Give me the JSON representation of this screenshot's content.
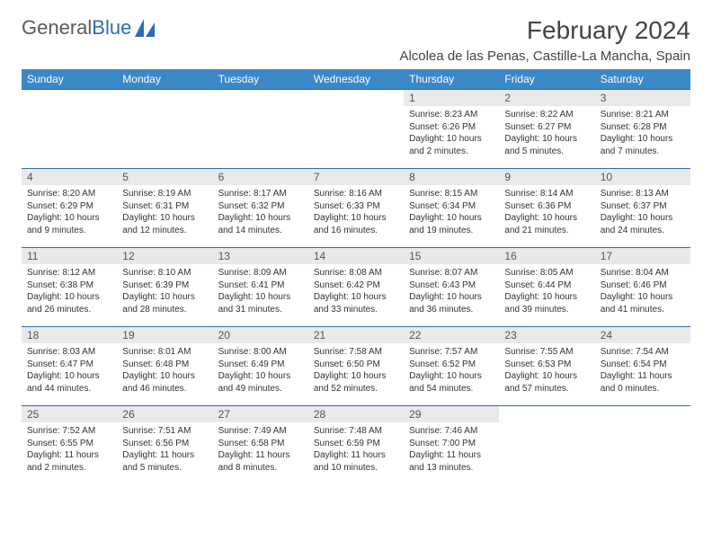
{
  "brand": {
    "part1": "General",
    "part2": "Blue"
  },
  "colors": {
    "header_bg": "#3b88c9",
    "header_text": "#ffffff",
    "border": "#2a6db5",
    "daynum_bg": "#e9e9e9",
    "text": "#333333",
    "brand_blue": "#2a6db5"
  },
  "title": "February 2024",
  "location": "Alcolea de las Penas, Castille-La Mancha, Spain",
  "weekdays": [
    "Sunday",
    "Monday",
    "Tuesday",
    "Wednesday",
    "Thursday",
    "Friday",
    "Saturday"
  ],
  "weeks": [
    [
      {
        "empty": true
      },
      {
        "empty": true
      },
      {
        "empty": true
      },
      {
        "empty": true
      },
      {
        "n": "1",
        "sr": "Sunrise: 8:23 AM",
        "ss": "Sunset: 6:26 PM",
        "dl1": "Daylight: 10 hours",
        "dl2": "and 2 minutes."
      },
      {
        "n": "2",
        "sr": "Sunrise: 8:22 AM",
        "ss": "Sunset: 6:27 PM",
        "dl1": "Daylight: 10 hours",
        "dl2": "and 5 minutes."
      },
      {
        "n": "3",
        "sr": "Sunrise: 8:21 AM",
        "ss": "Sunset: 6:28 PM",
        "dl1": "Daylight: 10 hours",
        "dl2": "and 7 minutes."
      }
    ],
    [
      {
        "n": "4",
        "sr": "Sunrise: 8:20 AM",
        "ss": "Sunset: 6:29 PM",
        "dl1": "Daylight: 10 hours",
        "dl2": "and 9 minutes."
      },
      {
        "n": "5",
        "sr": "Sunrise: 8:19 AM",
        "ss": "Sunset: 6:31 PM",
        "dl1": "Daylight: 10 hours",
        "dl2": "and 12 minutes."
      },
      {
        "n": "6",
        "sr": "Sunrise: 8:17 AM",
        "ss": "Sunset: 6:32 PM",
        "dl1": "Daylight: 10 hours",
        "dl2": "and 14 minutes."
      },
      {
        "n": "7",
        "sr": "Sunrise: 8:16 AM",
        "ss": "Sunset: 6:33 PM",
        "dl1": "Daylight: 10 hours",
        "dl2": "and 16 minutes."
      },
      {
        "n": "8",
        "sr": "Sunrise: 8:15 AM",
        "ss": "Sunset: 6:34 PM",
        "dl1": "Daylight: 10 hours",
        "dl2": "and 19 minutes."
      },
      {
        "n": "9",
        "sr": "Sunrise: 8:14 AM",
        "ss": "Sunset: 6:36 PM",
        "dl1": "Daylight: 10 hours",
        "dl2": "and 21 minutes."
      },
      {
        "n": "10",
        "sr": "Sunrise: 8:13 AM",
        "ss": "Sunset: 6:37 PM",
        "dl1": "Daylight: 10 hours",
        "dl2": "and 24 minutes."
      }
    ],
    [
      {
        "n": "11",
        "sr": "Sunrise: 8:12 AM",
        "ss": "Sunset: 6:38 PM",
        "dl1": "Daylight: 10 hours",
        "dl2": "and 26 minutes."
      },
      {
        "n": "12",
        "sr": "Sunrise: 8:10 AM",
        "ss": "Sunset: 6:39 PM",
        "dl1": "Daylight: 10 hours",
        "dl2": "and 28 minutes."
      },
      {
        "n": "13",
        "sr": "Sunrise: 8:09 AM",
        "ss": "Sunset: 6:41 PM",
        "dl1": "Daylight: 10 hours",
        "dl2": "and 31 minutes."
      },
      {
        "n": "14",
        "sr": "Sunrise: 8:08 AM",
        "ss": "Sunset: 6:42 PM",
        "dl1": "Daylight: 10 hours",
        "dl2": "and 33 minutes."
      },
      {
        "n": "15",
        "sr": "Sunrise: 8:07 AM",
        "ss": "Sunset: 6:43 PM",
        "dl1": "Daylight: 10 hours",
        "dl2": "and 36 minutes."
      },
      {
        "n": "16",
        "sr": "Sunrise: 8:05 AM",
        "ss": "Sunset: 6:44 PM",
        "dl1": "Daylight: 10 hours",
        "dl2": "and 39 minutes."
      },
      {
        "n": "17",
        "sr": "Sunrise: 8:04 AM",
        "ss": "Sunset: 6:46 PM",
        "dl1": "Daylight: 10 hours",
        "dl2": "and 41 minutes."
      }
    ],
    [
      {
        "n": "18",
        "sr": "Sunrise: 8:03 AM",
        "ss": "Sunset: 6:47 PM",
        "dl1": "Daylight: 10 hours",
        "dl2": "and 44 minutes."
      },
      {
        "n": "19",
        "sr": "Sunrise: 8:01 AM",
        "ss": "Sunset: 6:48 PM",
        "dl1": "Daylight: 10 hours",
        "dl2": "and 46 minutes."
      },
      {
        "n": "20",
        "sr": "Sunrise: 8:00 AM",
        "ss": "Sunset: 6:49 PM",
        "dl1": "Daylight: 10 hours",
        "dl2": "and 49 minutes."
      },
      {
        "n": "21",
        "sr": "Sunrise: 7:58 AM",
        "ss": "Sunset: 6:50 PM",
        "dl1": "Daylight: 10 hours",
        "dl2": "and 52 minutes."
      },
      {
        "n": "22",
        "sr": "Sunrise: 7:57 AM",
        "ss": "Sunset: 6:52 PM",
        "dl1": "Daylight: 10 hours",
        "dl2": "and 54 minutes."
      },
      {
        "n": "23",
        "sr": "Sunrise: 7:55 AM",
        "ss": "Sunset: 6:53 PM",
        "dl1": "Daylight: 10 hours",
        "dl2": "and 57 minutes."
      },
      {
        "n": "24",
        "sr": "Sunrise: 7:54 AM",
        "ss": "Sunset: 6:54 PM",
        "dl1": "Daylight: 11 hours",
        "dl2": "and 0 minutes."
      }
    ],
    [
      {
        "n": "25",
        "sr": "Sunrise: 7:52 AM",
        "ss": "Sunset: 6:55 PM",
        "dl1": "Daylight: 11 hours",
        "dl2": "and 2 minutes."
      },
      {
        "n": "26",
        "sr": "Sunrise: 7:51 AM",
        "ss": "Sunset: 6:56 PM",
        "dl1": "Daylight: 11 hours",
        "dl2": "and 5 minutes."
      },
      {
        "n": "27",
        "sr": "Sunrise: 7:49 AM",
        "ss": "Sunset: 6:58 PM",
        "dl1": "Daylight: 11 hours",
        "dl2": "and 8 minutes."
      },
      {
        "n": "28",
        "sr": "Sunrise: 7:48 AM",
        "ss": "Sunset: 6:59 PM",
        "dl1": "Daylight: 11 hours",
        "dl2": "and 10 minutes."
      },
      {
        "n": "29",
        "sr": "Sunrise: 7:46 AM",
        "ss": "Sunset: 7:00 PM",
        "dl1": "Daylight: 11 hours",
        "dl2": "and 13 minutes."
      },
      {
        "empty": true
      },
      {
        "empty": true
      }
    ]
  ]
}
